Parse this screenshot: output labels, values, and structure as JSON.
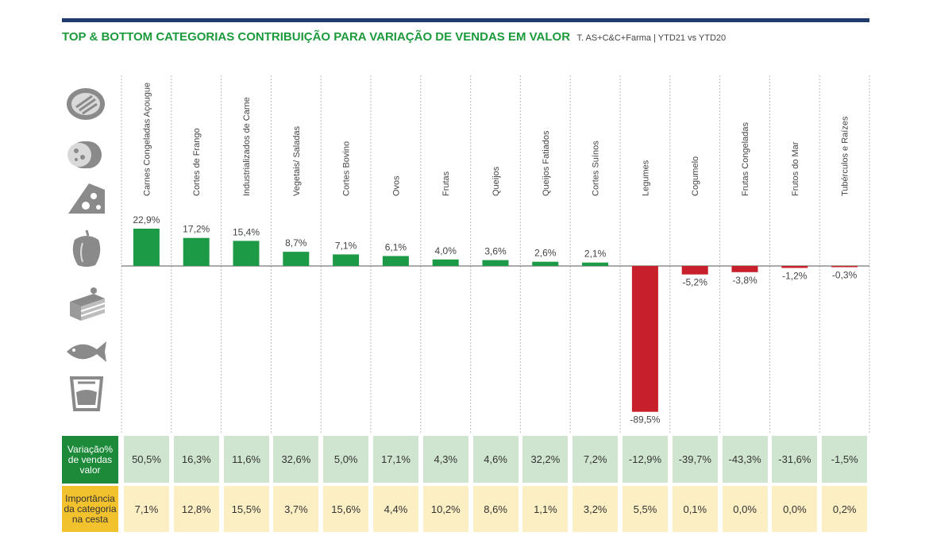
{
  "title": {
    "main": "TOP & BOTTOM CATEGORIAS CONTRIBUIÇÃO PARA VARIAÇÃO DE VENDAS EM VALOR",
    "sub": "T. AS+C&C+Farma | YTD21 vs YTD20"
  },
  "icons": [
    "meat-icon",
    "sausage-icon",
    "cheese-icon",
    "pepper-icon",
    "cake-icon",
    "fish-icon",
    "yogurt-icon"
  ],
  "colors": {
    "positive": "#1d9a46",
    "negative": "#c8202a",
    "header_bar": "#1f3a6b",
    "title": "#1c9a3c"
  },
  "chart_data": {
    "type": "bar",
    "categories": [
      "Carnes Congeladas Açougue",
      "Cortes de Frango",
      "Industrializados de Carne",
      "Vegetais/ Saladas",
      "Cortes Bovino",
      "Ovos",
      "Frutas",
      "Queijos",
      "Queijos Fatiados",
      "Cortes Suínos",
      "Legumes",
      "Cogumelo",
      "Frutas Congeladas",
      "Frutos do Mar",
      "Tubérculos e Raízes"
    ],
    "values": [
      22.9,
      17.2,
      15.4,
      8.7,
      7.1,
      6.1,
      4.0,
      3.6,
      2.6,
      2.1,
      -89.5,
      -5.2,
      -3.8,
      -1.2,
      -0.3
    ],
    "value_labels": [
      "22,9%",
      "17,2%",
      "15,4%",
      "8,7%",
      "7,1%",
      "6,1%",
      "4,0%",
      "3,6%",
      "2,6%",
      "2,1%",
      "-89,5%",
      "-5,2%",
      "-3,8%",
      "-1,2%",
      "-0,3%"
    ],
    "ylim": [
      -89.5,
      22.9
    ]
  },
  "table": {
    "row1_label": "Variação% de vendas valor",
    "row1": [
      "50,5%",
      "16,3%",
      "11,6%",
      "32,6%",
      "5,0%",
      "17,1%",
      "4,3%",
      "4,6%",
      "32,2%",
      "7,2%",
      "-12,9%",
      "-39,7%",
      "-43,3%",
      "-31,6%",
      "-1,5%"
    ],
    "row2_label": "Importância da categoria na cesta",
    "row2": [
      "7,1%",
      "12,8%",
      "15,5%",
      "3,7%",
      "15,6%",
      "4,4%",
      "10,2%",
      "8,6%",
      "1,1%",
      "3,2%",
      "5,5%",
      "0,1%",
      "0,0%",
      "0,0%",
      "0,2%"
    ]
  }
}
